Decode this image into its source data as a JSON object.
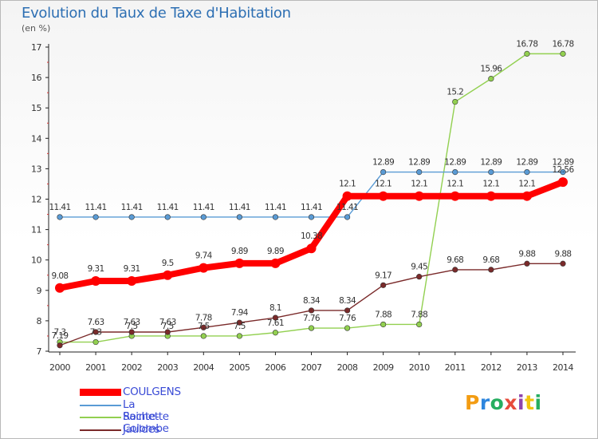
{
  "header": {
    "title": "Evolution du Taux de Taxe d'Habitation",
    "subtitle": "(en %)"
  },
  "brand": {
    "letters": [
      "P",
      "r",
      "o",
      "x",
      "i",
      "t",
      "i"
    ],
    "colors": [
      "#f39c12",
      "#2e86de",
      "#27ae60",
      "#e74c3c",
      "#8e44ad",
      "#f1c40f",
      "#27ae60"
    ]
  },
  "chart_data": {
    "type": "line",
    "title": "Evolution du Taux de Taxe d'Habitation",
    "ylabel": "(en %)",
    "x": [
      2000,
      2001,
      2002,
      2003,
      2004,
      2005,
      2006,
      2007,
      2008,
      2009,
      2010,
      2011,
      2012,
      2013,
      2014
    ],
    "ylim": [
      7,
      17
    ],
    "yticks": [
      7,
      8,
      9,
      10,
      11,
      12,
      13,
      14,
      15,
      16,
      17
    ],
    "grid": false,
    "legend": "bottom-left",
    "series": [
      {
        "name": "COULGENS",
        "color": "#ff0000",
        "values": [
          9.08,
          9.31,
          9.31,
          9.5,
          9.74,
          9.89,
          9.89,
          10.38,
          12.1,
          12.1,
          12.1,
          12.1,
          12.1,
          12.1,
          12.56
        ],
        "labels": [
          "9.08",
          "9.31",
          "9.31",
          "9.5",
          "9.74",
          "9.89",
          "9.89",
          "10.38",
          "12.1",
          "12.1",
          "12.1",
          "12.1",
          "12.1",
          "12.1",
          "12.56"
        ]
      },
      {
        "name": "La Rochette",
        "color": "#5a9bd5",
        "values": [
          11.41,
          11.41,
          11.41,
          11.41,
          11.41,
          11.41,
          11.41,
          11.41,
          11.41,
          12.89,
          12.89,
          12.89,
          12.89,
          12.89,
          12.89
        ],
        "labels": [
          "11.41",
          "11.41",
          "11.41",
          "11.41",
          "11.41",
          "11.41",
          "11.41",
          "11.41",
          "11.41",
          "12.89",
          "12.89",
          "12.89",
          "12.89",
          "12.89",
          "12.89"
        ]
      },
      {
        "name": "Sainte-Colombe",
        "color": "#92d050",
        "values": [
          7.3,
          7.3,
          7.5,
          7.5,
          7.5,
          7.5,
          7.61,
          7.76,
          7.76,
          7.88,
          7.88,
          15.2,
          15.96,
          16.78,
          16.78
        ],
        "labels": [
          "7.3",
          "7.3",
          "7.5",
          "7.5",
          "7.5",
          "7.5",
          "7.61",
          "7.76",
          "7.76",
          "7.88",
          "7.88",
          "15.2",
          "15.96",
          "16.78",
          "16.78"
        ]
      },
      {
        "name": "Jauldes",
        "color": "#7a2a2a",
        "values": [
          7.19,
          7.63,
          7.63,
          7.63,
          7.78,
          7.94,
          8.1,
          8.34,
          8.34,
          9.17,
          9.45,
          9.68,
          9.68,
          9.88,
          9.88
        ],
        "labels": [
          "7.19",
          "7.63",
          "7.63",
          "7.63",
          "7.78",
          "7.94",
          "8.1",
          "8.34",
          "8.34",
          "9.17",
          "9.45",
          "9.68",
          "9.68",
          "9.88",
          "9.88"
        ]
      }
    ]
  }
}
